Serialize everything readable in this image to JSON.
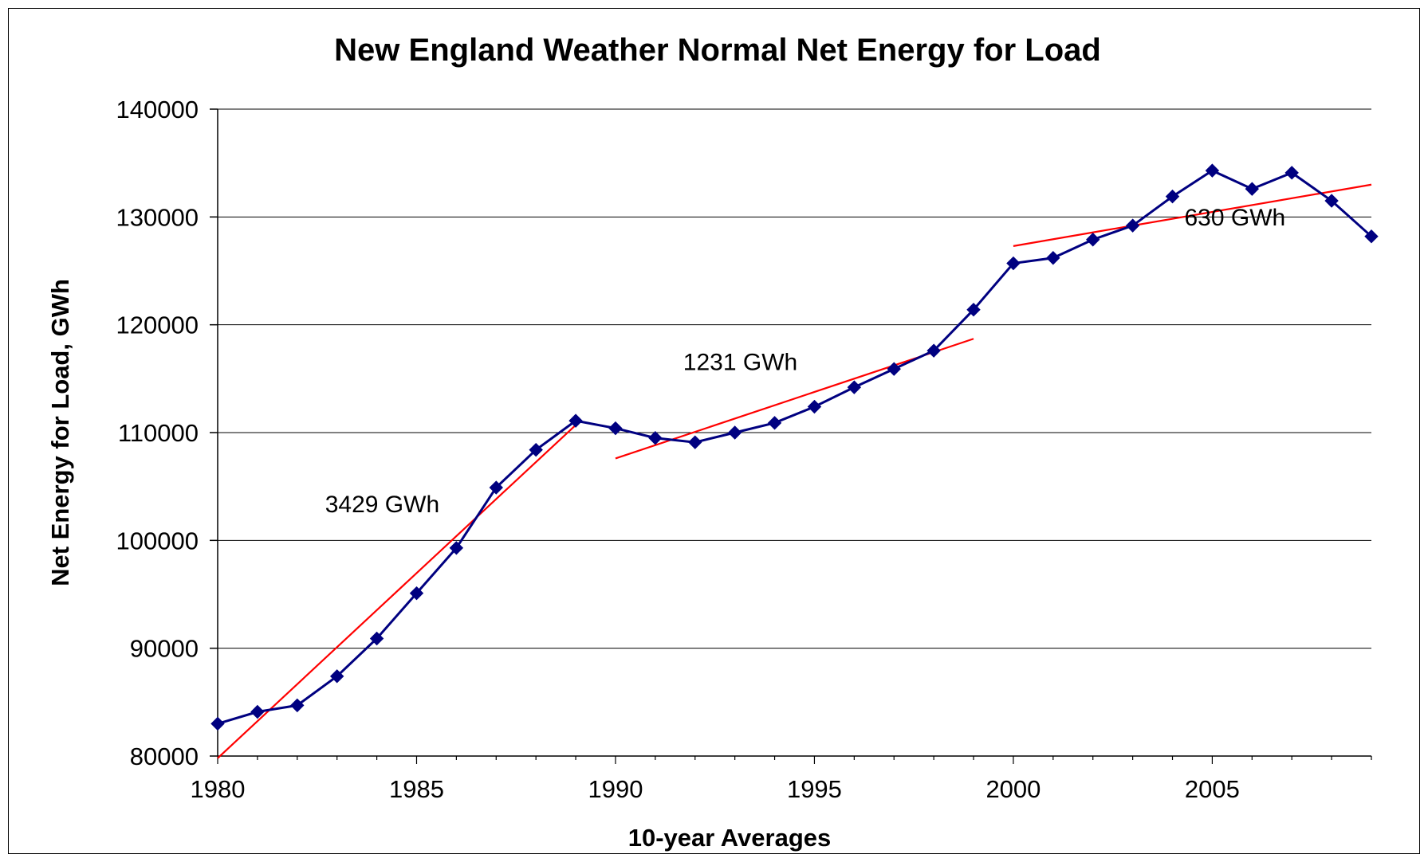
{
  "chart_data": {
    "type": "line",
    "title": "New England Weather Normal Net Energy for Load",
    "xlabel": "10-year Averages",
    "ylabel": "Net Energy for Load, GWh",
    "xlim": [
      1980,
      2009
    ],
    "ylim": [
      80000,
      140000
    ],
    "x_ticks": [
      1980,
      1985,
      1990,
      1995,
      2000,
      2005
    ],
    "x_tick_labels": [
      "1980",
      "1985",
      "1990",
      "1995",
      "2000",
      "2005"
    ],
    "y_ticks": [
      80000,
      90000,
      100000,
      110000,
      120000,
      130000,
      140000
    ],
    "y_tick_labels": [
      "80000",
      "90000",
      "100000",
      "110000",
      "120000",
      "130000",
      "140000"
    ],
    "grid": "horizontal",
    "legend": "none",
    "series": [
      {
        "color": "#000080",
        "marker": "diamond",
        "x": [
          1980,
          1981,
          1982,
          1983,
          1984,
          1985,
          1986,
          1987,
          1988,
          1989,
          1990,
          1991,
          1992,
          1993,
          1994,
          1995,
          1996,
          1997,
          1998,
          1999,
          2000,
          2001,
          2002,
          2003,
          2004,
          2005,
          2006,
          2007,
          2008,
          2009
        ],
        "values": [
          83000,
          84100,
          84700,
          87400,
          90900,
          95100,
          99300,
          104900,
          108400,
          111100,
          110400,
          109500,
          109100,
          110000,
          110900,
          112400,
          114200,
          115900,
          117600,
          121400,
          125700,
          126200,
          127900,
          129200,
          131900,
          134300,
          132600,
          134100,
          131500,
          128200
        ]
      }
    ],
    "trend_lines": [
      {
        "color": "#ff0000",
        "x": [
          1980,
          1989
        ],
        "values": [
          79800,
          110700
        ],
        "label": "3429 GWh",
        "label_x": 1982.7,
        "label_y": 102600
      },
      {
        "color": "#ff0000",
        "x": [
          1990,
          1999
        ],
        "values": [
          107600,
          118700
        ],
        "label": "1231 GWh",
        "label_x": 1991.7,
        "label_y": 115800
      },
      {
        "color": "#ff0000",
        "x": [
          2000,
          2009
        ],
        "values": [
          127300,
          133000
        ],
        "label": "630 GWh",
        "label_x": 2004.3,
        "label_y": 129200
      }
    ]
  }
}
